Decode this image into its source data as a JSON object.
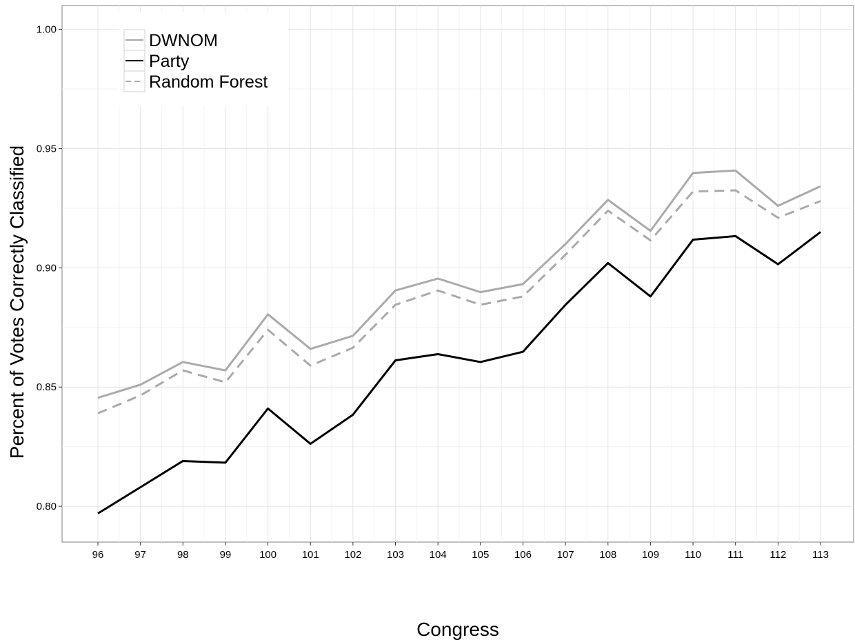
{
  "chart_data": {
    "type": "line",
    "xlabel": "Congress",
    "ylabel": "Percent of Votes Correctly Classified",
    "categories": [
      "96",
      "97",
      "98",
      "99",
      "100",
      "101",
      "102",
      "103",
      "104",
      "105",
      "106",
      "107",
      "108",
      "109",
      "110",
      "111",
      "112",
      "113"
    ],
    "ylim": [
      0.785,
      1.01
    ],
    "yticks": [
      0.8,
      0.85,
      0.9,
      0.95,
      1.0
    ],
    "ytick_labels": [
      "0.80",
      "0.85",
      "0.90",
      "0.95",
      "1.00"
    ],
    "grid": true,
    "legend_position": "top-left",
    "series": [
      {
        "name": "DWNOM",
        "color": "#aaaaaa",
        "dash": "solid",
        "values": [
          0.8455,
          0.851,
          0.8605,
          0.857,
          0.8805,
          0.866,
          0.8715,
          0.8905,
          0.8955,
          0.8898,
          0.8932,
          0.91,
          0.9285,
          0.9155,
          0.9398,
          0.9408,
          0.926,
          0.9342
        ]
      },
      {
        "name": "Party",
        "color": "#000000",
        "dash": "solid",
        "values": [
          0.797,
          0.808,
          0.819,
          0.8183,
          0.841,
          0.8262,
          0.8384,
          0.8612,
          0.8638,
          0.8605,
          0.8648,
          0.8845,
          0.902,
          0.888,
          0.9118,
          0.9133,
          0.9015,
          0.915
        ]
      },
      {
        "name": "Random Forest",
        "color": "#aaaaaa",
        "dash": "dashed",
        "values": [
          0.839,
          0.8465,
          0.857,
          0.852,
          0.874,
          0.859,
          0.8665,
          0.8845,
          0.8905,
          0.8845,
          0.888,
          0.9055,
          0.924,
          0.9115,
          0.932,
          0.9325,
          0.921,
          0.928
        ]
      }
    ]
  }
}
